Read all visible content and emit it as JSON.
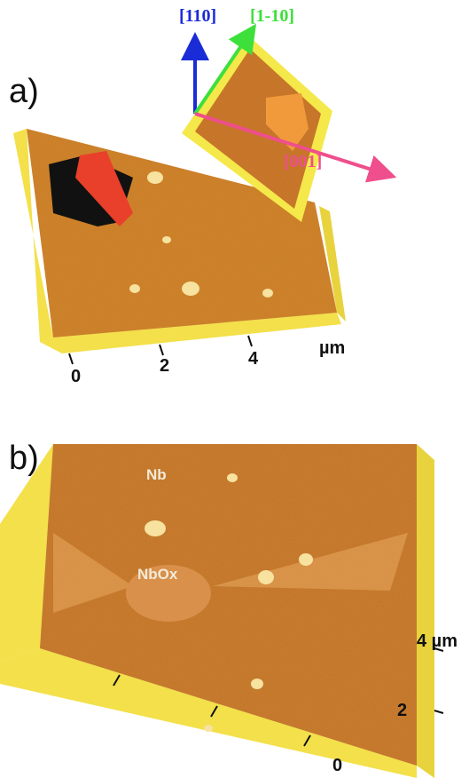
{
  "panels": [
    {
      "label": "a)",
      "directions": [
        "[110]",
        "[1-10]",
        "[001]"
      ],
      "axis_labels": [
        "0",
        "2",
        "4"
      ],
      "unit": "µm"
    },
    {
      "label": "b)",
      "regions": [
        "Nb",
        "NbOx"
      ],
      "axis_labels": [
        "4 µm",
        "2",
        "0"
      ]
    }
  ]
}
